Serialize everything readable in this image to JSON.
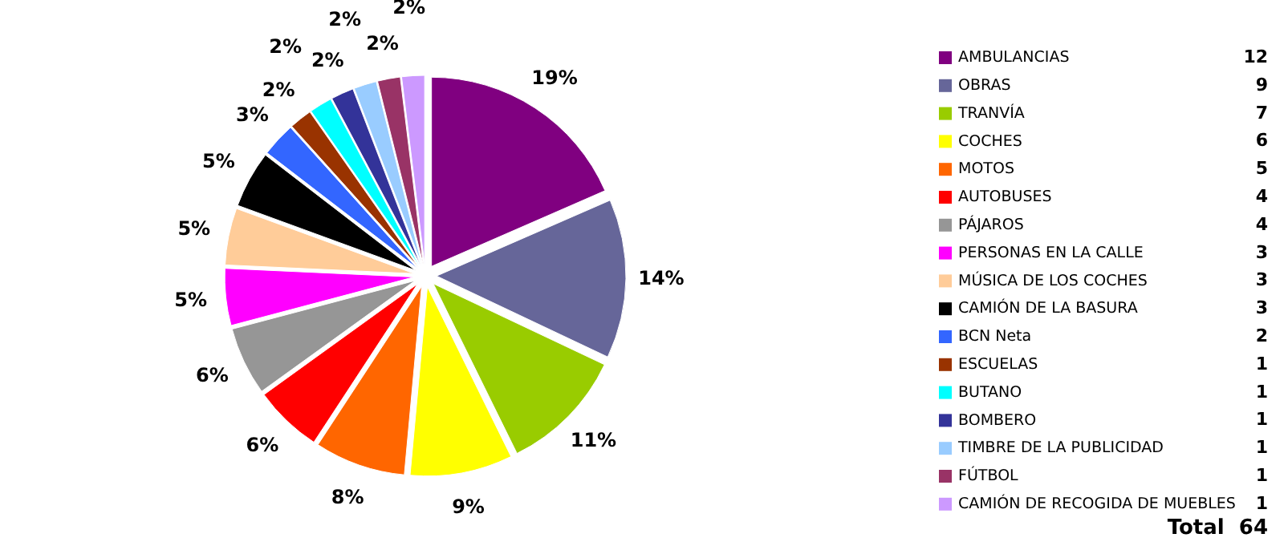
{
  "chart_data": {
    "type": "pie",
    "categories": [
      "AMBULANCIAS",
      "OBRAS",
      "TRANVÍA",
      "COCHES",
      "MOTOS",
      "AUTOBUSES",
      "PÁJAROS",
      "PERSONAS EN LA CALLE",
      "MÚSICA DE LOS COCHES",
      "CAMIÓN DE LA BASURA",
      "BCN Neta",
      "ESCUELAS",
      "BUTANO",
      "BOMBERO",
      "TIMBRE DE LA PUBLICIDAD",
      "FÚTBOL",
      "CAMIÓN DE RECOGIDA DE MUEBLES"
    ],
    "values": [
      19,
      14,
      11,
      9,
      8,
      6,
      6,
      5,
      5,
      5,
      3,
      2,
      2,
      2,
      2,
      2,
      2
    ],
    "value_labels": [
      "19%",
      "14%",
      "11%",
      "9%",
      "8%",
      "6%",
      "6%",
      "5%",
      "5%",
      "5%",
      "3%",
      "2%",
      "2%",
      "2%",
      "2%",
      "2%",
      "2%"
    ],
    "colors": [
      "#800080",
      "#666699",
      "#99cc00",
      "#ffff00",
      "#ff6600",
      "#ff0000",
      "#969696",
      "#ff00ff",
      "#ffcc99",
      "#000000",
      "#3366ff",
      "#993300",
      "#00ffff",
      "#333399",
      "#99ccff",
      "#993366",
      "#cc99ff"
    ],
    "legend": "right",
    "annotations": [
      "12",
      "9",
      "7",
      "6",
      "5",
      "4",
      "4",
      "3",
      "3",
      "3",
      "2",
      "1",
      "1",
      "1",
      "1",
      "1",
      "1",
      "Total  64"
    ]
  }
}
